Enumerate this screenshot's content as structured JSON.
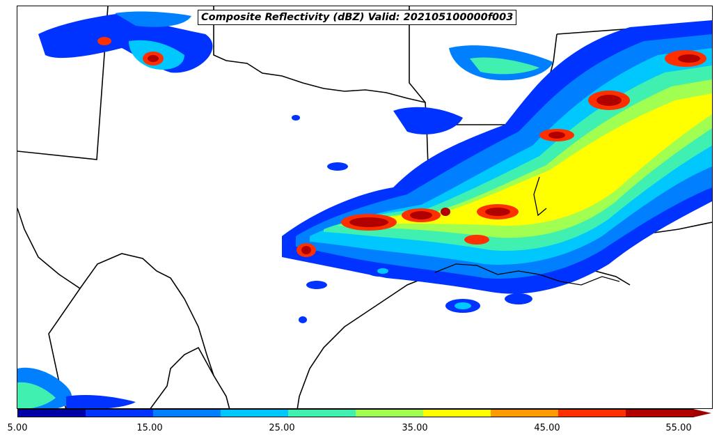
{
  "title": "Composite Reflectivity (dBZ) Valid: 202105100000f003",
  "colorbar": {
    "colors": [
      "#0000a6",
      "#0033ff",
      "#0080ff",
      "#00c8ff",
      "#40f0b0",
      "#a0ff50",
      "#ffff00",
      "#ff9a00",
      "#ff3000",
      "#b00000"
    ],
    "arrow_color": "#a00000",
    "tick_labels": [
      "5.00",
      "15.00",
      "25.00",
      "35.00",
      "45.00",
      "55.00"
    ]
  },
  "map": {
    "region": "Southern Plains / Gulf Coast",
    "borders_color": "#000000",
    "background": "#ffffff"
  }
}
